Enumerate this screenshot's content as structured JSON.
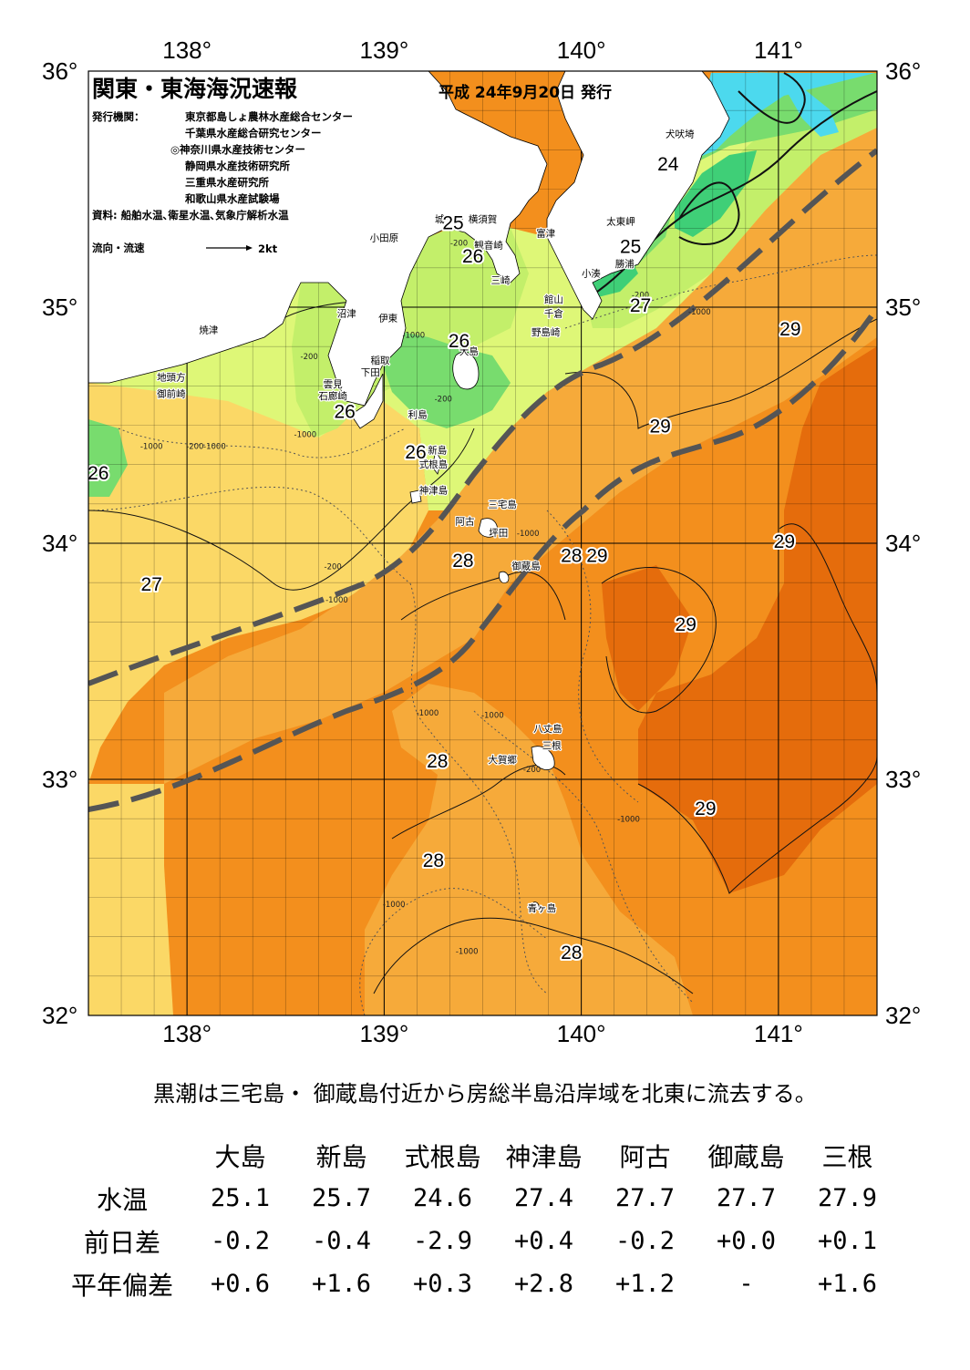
{
  "header": {
    "title": "関東・東海海況速報",
    "date": "平成 24年9月20日 発行",
    "issuer_label": "発行機関：",
    "issuers": [
      "東京都島しょ農林水産総合センター",
      "千葉県水産総合研究センター",
      "◎神奈川県水産技術センター",
      "静岡県水産技術研究所",
      "三重県水産研究所",
      "和歌山県水産試験場"
    ],
    "sources": "資料: 船舶水温､衛星水温､気象庁解析水温",
    "current_label": "流向・流速",
    "current_scale": "2kt"
  },
  "axes": {
    "lon_labels": [
      "138°",
      "139°",
      "140°",
      "141°"
    ],
    "lat_labels": [
      "36°",
      "35°",
      "34°",
      "33°",
      "32°"
    ],
    "lon_range": [
      137.5,
      141.5
    ],
    "lat_range": [
      32,
      36
    ]
  },
  "colors": {
    "land": "#ffffff",
    "t_cyan": "#4cd9ee",
    "t_green_dark": "#3fcf77",
    "t_green_mid": "#78dc6e",
    "t_green_light": "#c3ef6a",
    "t_yellow_green": "#def777",
    "t_yellow": "#fbd866",
    "t_orange_light": "#f6aa3a",
    "t_orange": "#f38f1d",
    "t_orange_dark": "#e56c0c",
    "kuroshio_axis": "#555555"
  },
  "isotherm_labels": [
    {
      "text": "24",
      "lon": 140.44,
      "lat": 35.58
    },
    {
      "text": "25",
      "lon": 140.25,
      "lon_note": "",
      "lat": 35.23
    },
    {
      "text": "25",
      "lon": 139.35,
      "lat": 35.33
    },
    {
      "text": "26",
      "lon": 139.45,
      "lat": 35.19
    },
    {
      "text": "27",
      "lon": 140.3,
      "lat": 34.98
    },
    {
      "text": "26",
      "lon": 139.38,
      "lat": 34.83
    },
    {
      "text": "26",
      "lon": 138.8,
      "lat": 34.53
    },
    {
      "text": "26",
      "lon": 137.55,
      "lat": 34.27
    },
    {
      "text": "26",
      "lon": 139.16,
      "lat": 34.36
    },
    {
      "text": "29",
      "lon": 141.06,
      "lat": 34.88
    },
    {
      "text": "29",
      "lon": 140.4,
      "lat": 34.47
    },
    {
      "text": "29",
      "lon": 141.03,
      "lat": 33.98
    },
    {
      "text": "28",
      "lon": 139.4,
      "lat": 33.9
    },
    {
      "text": "28",
      "lon": 139.95,
      "lat": 33.92
    },
    {
      "text": "29",
      "lon": 140.08,
      "lat": 33.92
    },
    {
      "text": "27",
      "lon": 137.82,
      "lat": 33.8
    },
    {
      "text": "29",
      "lon": 140.53,
      "lat": 33.63
    },
    {
      "text": "28",
      "lon": 139.27,
      "lat": 33.05
    },
    {
      "text": "29",
      "lon": 140.63,
      "lat": 32.85
    },
    {
      "text": "28",
      "lon": 139.25,
      "lat": 32.63
    },
    {
      "text": "28",
      "lon": 139.95,
      "lat": 32.24
    }
  ],
  "place_labels": [
    {
      "text": "犬吠埼",
      "lon": 140.5,
      "lat": 35.72
    },
    {
      "text": "太東岬",
      "lon": 140.2,
      "lat": 35.35
    },
    {
      "text": "勝浦",
      "lon": 140.22,
      "lat": 35.17
    },
    {
      "text": "小湊",
      "lon": 140.05,
      "lat": 35.13
    },
    {
      "text": "富津",
      "lon": 139.82,
      "lat": 35.3
    },
    {
      "text": "横須賀",
      "lon": 139.5,
      "lat": 35.36
    },
    {
      "text": "観音崎",
      "lon": 139.53,
      "lat": 35.25
    },
    {
      "text": "城ヶ島",
      "lon": 139.33,
      "lat": 35.36
    },
    {
      "text": "小田原",
      "lon": 139.0,
      "lat": 35.28
    },
    {
      "text": "三崎",
      "lon": 139.59,
      "lat": 35.1
    },
    {
      "text": "館山",
      "lon": 139.86,
      "lat": 35.02
    },
    {
      "text": "千倉",
      "lon": 139.86,
      "lat": 34.96
    },
    {
      "text": "野島崎",
      "lon": 139.82,
      "lat": 34.88
    },
    {
      "text": "沼津",
      "lon": 138.81,
      "lat": 34.96
    },
    {
      "text": "伊東",
      "lon": 139.02,
      "lat": 34.94
    },
    {
      "text": "焼津",
      "lon": 138.11,
      "lat": 34.89
    },
    {
      "text": "大島",
      "lon": 139.43,
      "lat": 34.8
    },
    {
      "text": "稲取",
      "lon": 138.98,
      "lat": 34.76
    },
    {
      "text": "下田",
      "lon": 138.93,
      "lat": 34.71
    },
    {
      "text": "雲見",
      "lon": 138.74,
      "lat": 34.66
    },
    {
      "text": "石廊崎",
      "lon": 138.74,
      "lat": 34.61
    },
    {
      "text": "地頭方",
      "lon": 137.92,
      "lat": 34.69
    },
    {
      "text": "御前崎",
      "lon": 137.92,
      "lat": 34.62
    },
    {
      "text": "利島",
      "lon": 139.17,
      "lat": 34.53
    },
    {
      "text": "新島",
      "lon": 139.27,
      "lat": 34.38
    },
    {
      "text": "式根島",
      "lon": 139.25,
      "lat": 34.32
    },
    {
      "text": "神津島",
      "lon": 139.25,
      "lat": 34.21
    },
    {
      "text": "三宅島",
      "lon": 139.6,
      "lat": 34.15
    },
    {
      "text": "阿古",
      "lon": 139.41,
      "lat": 34.08
    },
    {
      "text": "坪田",
      "lon": 139.58,
      "lat": 34.03
    },
    {
      "text": "御蔵島",
      "lon": 139.72,
      "lat": 33.89
    },
    {
      "text": "八丈島",
      "lon": 139.83,
      "lat": 33.2
    },
    {
      "text": "三根",
      "lon": 139.85,
      "lat": 33.13
    },
    {
      "text": "大賀郷",
      "lon": 139.6,
      "lat": 33.07
    },
    {
      "text": "青ヶ島",
      "lon": 139.8,
      "lat": 32.44
    }
  ],
  "depth_labels": [
    {
      "text": "-200",
      "lon": 139.38,
      "lat": 35.26
    },
    {
      "text": "-200",
      "lon": 140.3,
      "lat": 35.04
    },
    {
      "text": "-1000",
      "lon": 140.6,
      "lat": 34.97
    },
    {
      "text": "-1000",
      "lon": 138.14,
      "lat": 34.4
    },
    {
      "text": "-200",
      "lon": 138.04,
      "lat": 34.4
    },
    {
      "text": "-1000",
      "lon": 137.82,
      "lat": 34.4
    },
    {
      "text": "-1000",
      "lon": 138.6,
      "lat": 34.45
    },
    {
      "text": "-200",
      "lon": 138.62,
      "lat": 34.78
    },
    {
      "text": "-1000",
      "lon": 139.15,
      "lat": 34.87
    },
    {
      "text": "-200",
      "lon": 139.3,
      "lat": 34.6
    },
    {
      "text": "-200",
      "lon": 138.74,
      "lat": 33.89
    },
    {
      "text": "-1000",
      "lon": 138.76,
      "lat": 33.75
    },
    {
      "text": "-1000",
      "lon": 139.73,
      "lat": 34.03
    },
    {
      "text": "-1000",
      "lon": 139.22,
      "lat": 33.27
    },
    {
      "text": "-1000",
      "lon": 139.55,
      "lat": 33.26
    },
    {
      "text": "-200",
      "lon": 139.75,
      "lat": 33.03
    },
    {
      "text": "-1000",
      "lon": 140.24,
      "lat": 32.82
    },
    {
      "text": "-1000",
      "lon": 139.05,
      "lat": 32.46
    },
    {
      "text": "-1000",
      "lon": 139.42,
      "lat": 32.26
    }
  ],
  "summary": "黒潮は三宅島・ 御蔵島付近から房総半島沿岸域を北東に流去する。",
  "table": {
    "columns": [
      "大島",
      "新島",
      "式根島",
      "神津島",
      "阿古",
      "御蔵島",
      "三根"
    ],
    "rows": [
      {
        "label": "水温",
        "values": [
          "25.1",
          "25.7",
          "24.6",
          "27.4",
          "27.7",
          "27.7",
          "27.9"
        ]
      },
      {
        "label": "前日差",
        "values": [
          "-0.2",
          "-0.4",
          "-2.9",
          "+0.4",
          "-0.2",
          "+0.0",
          "+0.1"
        ]
      },
      {
        "label": "平年偏差",
        "values": [
          "+0.6",
          "+1.6",
          "+0.3",
          "+2.8",
          "+1.2",
          "-",
          "+1.6"
        ]
      }
    ]
  }
}
